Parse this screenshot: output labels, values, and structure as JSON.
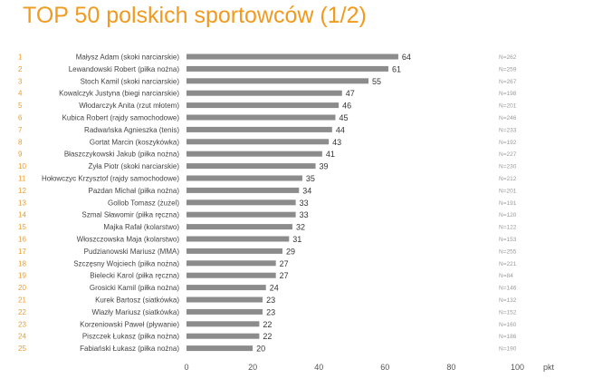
{
  "title": "TOP 50 polskich sportowców (1/2)",
  "chart_data": {
    "type": "bar",
    "orientation": "horizontal",
    "title": "TOP 50 polskich sportowców (1/2)",
    "xlabel": "pkt",
    "xlim": [
      0,
      100
    ],
    "xticks": [
      "0",
      "20",
      "40",
      "60",
      "80",
      "100"
    ],
    "bar_color": "#8c8c8c",
    "accent_color": "#f29a1f",
    "rows": [
      {
        "rank": "1",
        "label": "Małysz Adam (skoki narciarskie)",
        "value": 64,
        "n": "N=262"
      },
      {
        "rank": "2",
        "label": "Lewandowski Robert (piłka nożna)",
        "value": 61,
        "n": "N=259"
      },
      {
        "rank": "3",
        "label": "Stoch Kamil (skoki narciarskie)",
        "value": 55,
        "n": "N=267"
      },
      {
        "rank": "4",
        "label": "Kowalczyk Justyna (biegi narciarskie)",
        "value": 47,
        "n": "N=198"
      },
      {
        "rank": "5",
        "label": "Włodarczyk Anita (rzut młotem)",
        "value": 46,
        "n": "N=201"
      },
      {
        "rank": "6",
        "label": "Kubica Robert (rajdy samochodowe)",
        "value": 45,
        "n": "N=246"
      },
      {
        "rank": "7",
        "label": "Radwańska Agnieszka (tenis)",
        "value": 44,
        "n": "N=233"
      },
      {
        "rank": "8",
        "label": "Gortat Marcin (koszykówka)",
        "value": 43,
        "n": "N=192"
      },
      {
        "rank": "9",
        "label": "Błaszczykowski Jakub (piłka nożna)",
        "value": 41,
        "n": "N=227"
      },
      {
        "rank": "10",
        "label": "Żyła Piotr (skoki narciarskie)",
        "value": 39,
        "n": "N=230"
      },
      {
        "rank": "11",
        "label": "Hołowczyc Krzysztof (rajdy samochodowe)",
        "value": 35,
        "n": "N=212"
      },
      {
        "rank": "12",
        "label": "Pazdan Michał (piłka nożna)",
        "value": 34,
        "n": "N=201"
      },
      {
        "rank": "13",
        "label": "Gollob Tomasz (żużel)",
        "value": 33,
        "n": "N=191"
      },
      {
        "rank": "14",
        "label": "Szmal Sławomir (piłka ręczna)",
        "value": 33,
        "n": "N=120"
      },
      {
        "rank": "15",
        "label": "Majka Rafał (kolarstwo)",
        "value": 32,
        "n": "N=122"
      },
      {
        "rank": "16",
        "label": "Włoszczowska Maja (kolarstwo)",
        "value": 31,
        "n": "N=153"
      },
      {
        "rank": "17",
        "label": "Pudzianowski Mariusz (MMA)",
        "value": 29,
        "n": "N=255"
      },
      {
        "rank": "18",
        "label": "Szczęsny Wojciech (piłka nożna)",
        "value": 27,
        "n": "N=221"
      },
      {
        "rank": "19",
        "label": "Bielecki Karol (piłka ręczna)",
        "value": 27,
        "n": "N=84"
      },
      {
        "rank": "20",
        "label": "Grosicki Kamil (piłka nożna)",
        "value": 24,
        "n": "N=146"
      },
      {
        "rank": "21",
        "label": "Kurek Bartosz (siatkówka)",
        "value": 23,
        "n": "N=132"
      },
      {
        "rank": "22",
        "label": "Wlazły Mariusz (siatkówka)",
        "value": 23,
        "n": "N=152"
      },
      {
        "rank": "23",
        "label": "Korzeniowski Paweł (pływanie)",
        "value": 22,
        "n": "N=160"
      },
      {
        "rank": "24",
        "label": "Piszczek Łukasz (piłka nożna)",
        "value": 22,
        "n": "N=186"
      },
      {
        "rank": "25",
        "label": "Fabiański Łukasz (piłka nożna)",
        "value": 20,
        "n": "N=190"
      }
    ]
  }
}
